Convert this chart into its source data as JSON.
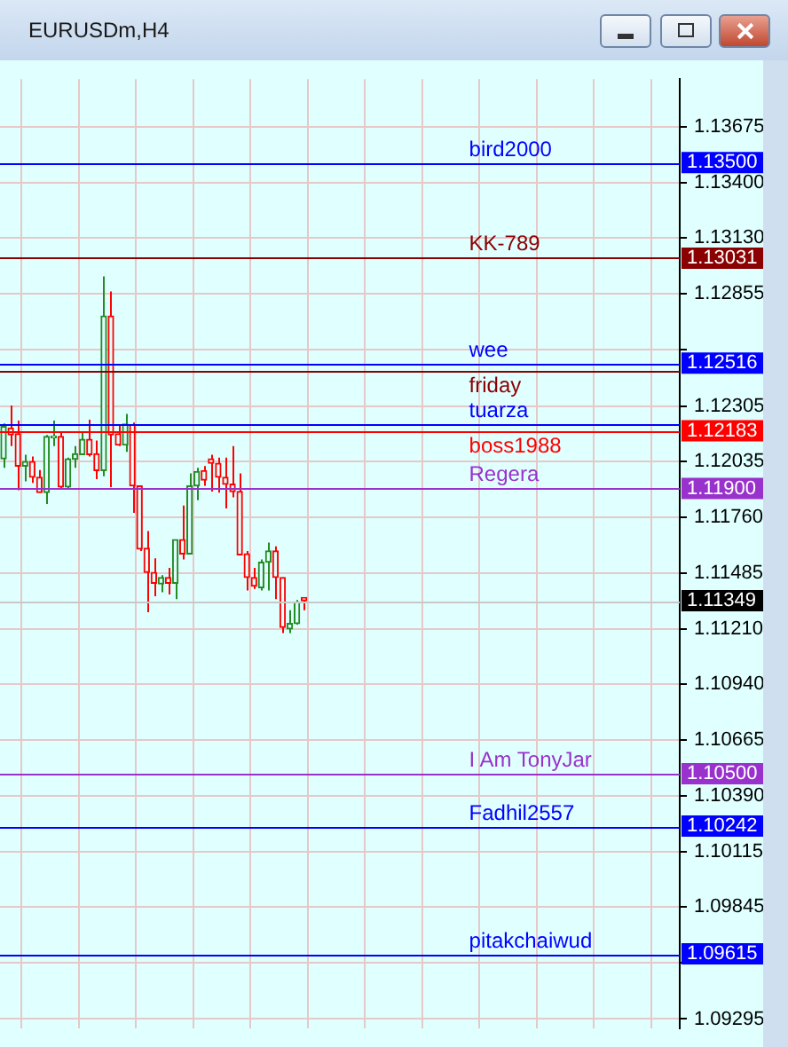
{
  "chart_data": {
    "type": "candlestick",
    "title": "EURUSDm,H4",
    "categories": [
      null,
      null,
      null,
      null,
      null,
      null,
      null,
      null,
      null,
      null,
      null,
      null,
      null,
      null,
      null,
      null,
      null,
      null,
      null,
      null,
      null,
      null,
      null,
      null,
      null,
      null,
      null,
      null,
      null,
      null,
      null,
      null,
      null,
      null,
      null,
      null,
      null,
      null,
      null,
      null,
      null,
      null,
      null,
      null,
      null,
      null,
      null,
      null,
      null,
      null,
      null,
      null,
      null,
      null,
      null,
      null,
      null,
      null,
      null,
      null,
      null,
      null,
      null,
      null,
      null,
      null,
      null,
      null,
      null,
      null,
      null,
      null,
      null,
      null,
      null,
      null,
      null,
      null,
      null,
      null,
      null,
      null,
      null,
      null,
      null,
      null,
      null,
      null,
      null,
      null,
      null,
      null,
      null,
      null,
      null
    ],
    "ohlc": [
      [
        1.12046,
        1.12219,
        1.12002,
        1.12205
      ],
      [
        1.12197,
        1.12308,
        1.12108,
        1.12163
      ],
      [
        1.12169,
        1.12233,
        1.11891,
        1.1201
      ],
      [
        1.1201,
        1.12066,
        1.11935,
        1.12032
      ],
      [
        1.12032,
        1.12057,
        1.11927,
        1.11955
      ],
      [
        1.11955,
        1.11991,
        1.1188,
        1.1188
      ],
      [
        1.1188,
        1.12163,
        1.11824,
        1.12155
      ],
      [
        1.12149,
        1.12233,
        1.12108,
        1.12158
      ],
      [
        1.12155,
        1.12177,
        1.11899,
        1.11907
      ],
      [
        1.11907,
        1.12052,
        1.11899,
        1.12046
      ],
      [
        1.12044,
        1.12108,
        1.12002,
        1.12071
      ],
      [
        1.12066,
        1.12177,
        1.12066,
        1.12141
      ],
      [
        1.12141,
        1.12238,
        1.12057,
        1.12066
      ],
      [
        1.12071,
        1.12135,
        1.11946,
        1.11988
      ],
      [
        1.11988,
        1.12942,
        1.1196,
        1.12747
      ],
      [
        1.12747,
        1.12867,
        1.11907,
        1.12163
      ],
      [
        1.12169,
        1.12216,
        1.12108,
        1.12113
      ],
      [
        1.12113,
        1.12266,
        1.1208,
        1.12216
      ],
      [
        1.12213,
        1.12224,
        1.1178,
        1.11913
      ],
      [
        1.11913,
        1.11913,
        1.11593,
        1.11602
      ],
      [
        1.11607,
        1.11691,
        1.11293,
        1.11488
      ],
      [
        1.11488,
        1.11557,
        1.11371,
        1.11435
      ],
      [
        1.11432,
        1.11474,
        1.11391,
        1.11463
      ],
      [
        1.11463,
        1.1151,
        1.1138,
        1.11435
      ],
      [
        1.11435,
        1.11649,
        1.11357,
        1.11649
      ],
      [
        1.11649,
        1.11816,
        1.11552,
        1.11579
      ],
      [
        1.11579,
        1.11974,
        1.11579,
        1.11913
      ],
      [
        1.11913,
        1.12002,
        1.11843,
        1.11983
      ],
      [
        1.11988,
        1.1201,
        1.11913,
        1.11941
      ],
      [
        1.12046,
        1.12066,
        1.11885,
        1.12024
      ],
      [
        1.12024,
        1.12052,
        1.1188,
        1.11955
      ],
      [
        1.11955,
        1.12052,
        1.11802,
        1.11921
      ],
      [
        1.11921,
        1.12108,
        1.11857,
        1.11885
      ],
      [
        1.11885,
        1.11974,
        1.11574,
        1.11574
      ],
      [
        1.11579,
        1.11593,
        1.11399,
        1.11463
      ],
      [
        1.11463,
        1.1151,
        1.11407,
        1.11421
      ],
      [
        1.11413,
        1.11552,
        1.11399,
        1.11538
      ],
      [
        1.11538,
        1.11635,
        1.11399,
        1.11593
      ],
      [
        1.11593,
        1.11616,
        1.11357,
        1.11463
      ],
      [
        1.11463,
        1.11463,
        1.1119,
        1.11218
      ],
      [
        1.1121,
        1.11302,
        1.1119,
        1.11237
      ],
      [
        1.11237,
        1.11352,
        1.11232,
        1.11343
      ],
      [
        1.11365,
        1.11365,
        1.11302,
        1.11349
      ],
      null,
      null,
      null,
      null,
      null,
      null,
      null,
      null,
      null,
      null,
      null,
      null,
      null,
      null,
      null,
      null,
      null,
      null,
      null,
      null,
      null,
      null,
      null,
      null,
      null,
      null,
      null,
      null,
      null,
      null,
      null,
      null,
      null,
      null,
      null,
      null,
      null,
      null,
      null,
      null,
      null,
      null,
      null,
      null,
      null,
      null,
      null,
      null,
      null,
      null,
      null,
      null
    ],
    "colors": [
      "#228b22",
      "#ff0000",
      "#ff0000",
      "#228b22",
      "#ff0000",
      "#ff0000",
      "#228b22",
      "#228b22",
      "#ff0000",
      "#228b22",
      "#228b22",
      "#228b22",
      "#ff0000",
      "#ff0000",
      "#228b22",
      "#ff0000",
      "#ff0000",
      "#228b22",
      "#ff0000",
      "#ff0000",
      "#ff0000",
      "#ff0000",
      "#228b22",
      "#ff0000",
      "#228b22",
      "#ff0000",
      "#228b22",
      "#228b22",
      "#ff0000",
      "#ff0000",
      "#ff0000",
      "#ff0000",
      "#ff0000",
      "#ff0000",
      "#ff0000",
      "#ff0000",
      "#228b22",
      "#228b22",
      "#ff0000",
      "#ff0000",
      "#228b22",
      "#228b22",
      "#ff0000",
      null,
      null,
      null,
      null,
      null,
      null,
      null,
      null,
      null,
      null,
      null,
      null,
      null,
      null,
      null,
      null,
      null,
      null,
      null,
      null,
      null,
      null,
      null,
      null,
      null,
      null,
      null,
      null,
      null,
      null,
      null,
      null,
      null,
      null,
      null,
      null,
      null,
      null,
      null,
      null,
      null,
      null,
      null,
      null,
      null,
      null,
      null,
      null,
      null,
      null,
      null,
      null
    ],
    "ylim": [
      1.0925,
      1.1391
    ],
    "yticks": [
      1.09295,
      {
        "value": 1.0957,
        "label": null
      },
      1.09845,
      1.10115,
      {
        "value": 1.1039,
        "label": "1.10390"
      },
      1.10665,
      {
        "value": 1.1094,
        "label": "1.10940"
      },
      {
        "value": 1.1121,
        "label": "1.11210"
      },
      1.11485,
      {
        "value": 1.1176,
        "label": "1.11760"
      },
      1.12035,
      1.12305,
      {
        "value": 1.1258,
        "label": null
      },
      1.12855,
      {
        "value": 1.1313,
        "label": "1.13130"
      },
      {
        "value": 1.134,
        "label": "1.13400"
      },
      1.13675
    ],
    "annotations": [
      "1.13500",
      "1.13031",
      "1.12516",
      "1.12183",
      "1.11900",
      "1.11349",
      "1.10500",
      "1.10242",
      "1.09615"
    ],
    "grid": true,
    "tick_labels": "y",
    "ref_lines": [
      {
        "axis": "y",
        "value": 1.135,
        "label": "bird2000",
        "color": "#0000ff"
      },
      {
        "axis": "y",
        "value": 1.13031,
        "label": "KK-789",
        "color": "#8b0000"
      },
      {
        "axis": "y",
        "value": 1.12516,
        "label": "wee",
        "color": "#0000ff"
      },
      {
        "axis": "y",
        "value": 1.12475,
        "label": "friday",
        "color": "#8b0000"
      },
      {
        "axis": "y",
        "value": 1.1222,
        "label": "tuarza",
        "color": "#0000ff"
      },
      {
        "axis": "y",
        "value": 1.12183,
        "label": "boss1988",
        "color": "#ff0000"
      },
      {
        "axis": "y",
        "value": 1.119,
        "label": "Regera",
        "color": "#9932cc"
      },
      {
        "axis": "y",
        "value": 1.11349,
        "label": null,
        "color": "#c8c8c8"
      },
      {
        "axis": "y",
        "value": 1.105,
        "label": "I Am TonyJar",
        "color": "#9932cc"
      },
      {
        "axis": "y",
        "value": 1.10242,
        "label": "Fadhil2557",
        "color": "#0000ff"
      },
      {
        "axis": "y",
        "value": 1.09615,
        "label": "pitakchaiwud",
        "color": "#0000ff"
      }
    ]
  }
}
